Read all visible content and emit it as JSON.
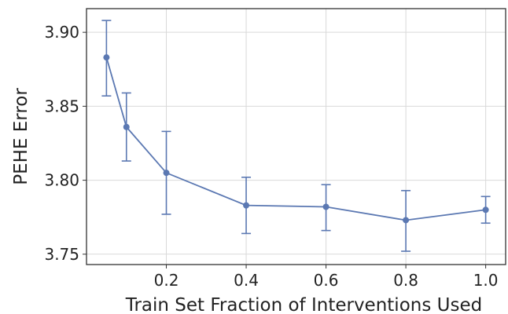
{
  "chart_data": {
    "type": "line",
    "xlabel": "Train Set Fraction of Interventions Used",
    "ylabel": "PEHE Error",
    "xlim": [
      0.0,
      1.05
    ],
    "ylim": [
      3.743,
      3.916
    ],
    "xticks": [
      0.2,
      0.4,
      0.6,
      0.8,
      1.0
    ],
    "xtick_labels": [
      "0.2",
      "0.4",
      "0.6",
      "0.8",
      "1.0"
    ],
    "yticks": [
      3.75,
      3.8,
      3.85,
      3.9
    ],
    "ytick_labels": [
      "3.75",
      "3.80",
      "3.85",
      "3.90"
    ],
    "grid": true,
    "series": [
      {
        "color": "#5b78b2",
        "x": [
          0.05,
          0.1,
          0.2,
          0.4,
          0.6,
          0.8,
          1.0
        ],
        "y": [
          3.883,
          3.836,
          3.805,
          3.783,
          3.782,
          3.773,
          3.78
        ],
        "err_low": [
          3.857,
          3.813,
          3.777,
          3.764,
          3.766,
          3.752,
          3.771
        ],
        "err_high": [
          3.908,
          3.859,
          3.833,
          3.802,
          3.797,
          3.793,
          3.789
        ]
      }
    ]
  }
}
